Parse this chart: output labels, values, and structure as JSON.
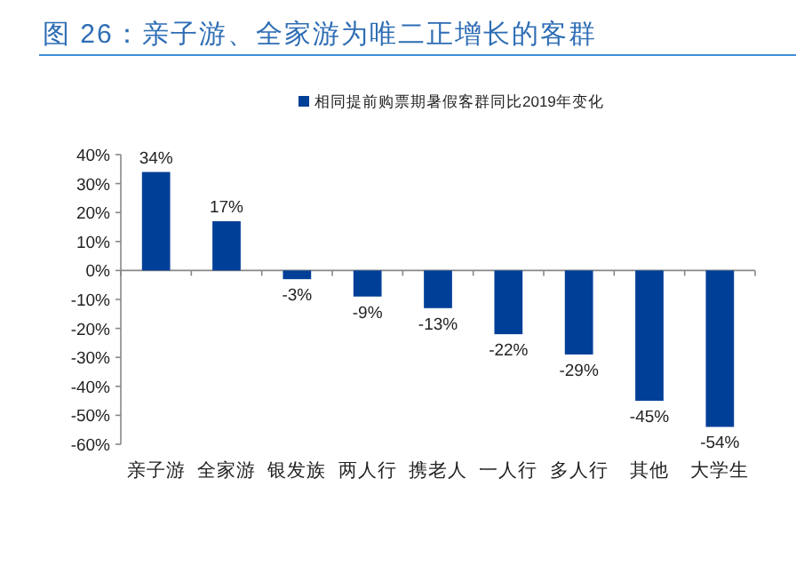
{
  "chart_data": {
    "type": "bar",
    "title": "图 26：亲子游、全家游为唯二正增长的客群",
    "categories": [
      "亲子游",
      "全家游",
      "银发族",
      "两人行",
      "携老人",
      "一人行",
      "多人行",
      "其他",
      "大学生"
    ],
    "series": [
      {
        "name": "相同提前购票期暑假客群同比2019年变化",
        "color": "#003f98",
        "values": [
          34,
          17,
          -3,
          -9,
          -13,
          -22,
          -29,
          -45,
          -54
        ],
        "value_labels": [
          "34%",
          "17%",
          "-3%",
          "-9%",
          "-13%",
          "-22%",
          "-29%",
          "-45%",
          "-54%"
        ]
      }
    ],
    "ylim": [
      -60,
      40
    ],
    "yticks": [
      {
        "value": 40,
        "label": "40%"
      },
      {
        "value": 30,
        "label": "30%"
      },
      {
        "value": 20,
        "label": "20%"
      },
      {
        "value": 10,
        "label": "10%"
      },
      {
        "value": 0,
        "label": "0%"
      },
      {
        "value": -10,
        "label": "-10%"
      },
      {
        "value": -20,
        "label": "-20%"
      },
      {
        "value": -30,
        "label": "-30%"
      },
      {
        "value": -40,
        "label": "-40%"
      },
      {
        "value": -50,
        "label": "-50%"
      },
      {
        "value": -60,
        "label": "-60%"
      }
    ],
    "legend": "top"
  }
}
